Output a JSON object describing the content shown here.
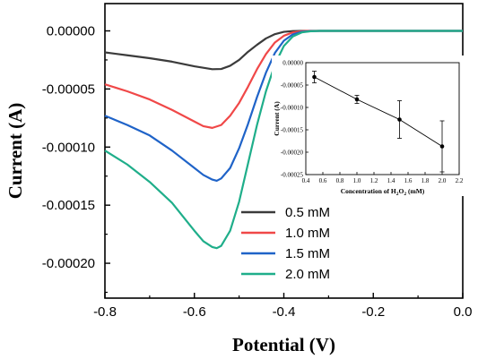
{
  "chart_data": [
    {
      "type": "line",
      "xlabel": "Potential (V)",
      "ylabel": "Current (A)",
      "xlim": [
        -0.8,
        0.0
      ],
      "ylim": [
        -0.00023,
        2.35e-05
      ],
      "xticks": [
        -0.8,
        -0.6,
        -0.4,
        -0.2,
        0.0
      ],
      "xtick_labels": [
        "-0.8",
        "-0.6",
        "-0.4",
        "-0.2",
        "0.0"
      ],
      "yticks": [
        0.0,
        -5e-05,
        -0.0001,
        -0.00015,
        -0.0002
      ],
      "ytick_labels": [
        "0.00000",
        "-0.00005",
        "-0.00010",
        "-0.00015",
        "-0.00020"
      ],
      "grid": false,
      "legend_position": "bottom-right",
      "series": [
        {
          "name": "0.5 mM",
          "color": "#3b3b3b",
          "x": [
            -0.8,
            -0.75,
            -0.7,
            -0.65,
            -0.6,
            -0.56,
            -0.54,
            -0.52,
            -0.5,
            -0.48,
            -0.46,
            -0.44,
            -0.42,
            -0.4,
            -0.38,
            -0.36,
            -0.34,
            -0.32,
            -0.3,
            -0.2,
            -0.1,
            0.0
          ],
          "y": [
            -1.85e-05,
            -2.1e-05,
            -2.35e-05,
            -2.65e-05,
            -3.05e-05,
            -3.3e-05,
            -3.28e-05,
            -3e-05,
            -2.5e-05,
            -1.8e-05,
            -1.2e-05,
            -6.5e-06,
            -2.8e-06,
            -8e-07,
            -2e-07,
            0.0,
            0.0,
            0.0,
            0.0,
            0.0,
            0.0,
            0.0
          ]
        },
        {
          "name": "1.0 mM",
          "color": "#f04848",
          "x": [
            -0.8,
            -0.75,
            -0.7,
            -0.65,
            -0.6,
            -0.58,
            -0.56,
            -0.54,
            -0.52,
            -0.5,
            -0.48,
            -0.46,
            -0.44,
            -0.42,
            -0.4,
            -0.38,
            -0.36,
            -0.34,
            -0.32,
            -0.3,
            -0.2,
            -0.1,
            0.0
          ],
          "y": [
            -4.6e-05,
            -5.2e-05,
            -5.9e-05,
            -6.8e-05,
            -7.8e-05,
            -8.2e-05,
            -8.35e-05,
            -8.1e-05,
            -7.3e-05,
            -6.2e-05,
            -4.8e-05,
            -3.3e-05,
            -2e-05,
            -1e-05,
            -4.2e-06,
            -1.3e-06,
            -3e-07,
            0.0,
            0.0,
            0.0,
            0.0,
            0.0,
            0.0
          ]
        },
        {
          "name": "1.5 mM",
          "color": "#1f63c8",
          "x": [
            -0.8,
            -0.75,
            -0.7,
            -0.65,
            -0.6,
            -0.58,
            -0.56,
            -0.55,
            -0.54,
            -0.52,
            -0.5,
            -0.48,
            -0.46,
            -0.44,
            -0.42,
            -0.4,
            -0.38,
            -0.36,
            -0.34,
            -0.32,
            -0.3,
            -0.2,
            -0.1,
            0.0
          ],
          "y": [
            -7.3e-05,
            -8.1e-05,
            -9e-05,
            -0.000103,
            -0.000118,
            -0.000124,
            -0.000128,
            -0.000129,
            -0.000127,
            -0.000118,
            -0.000101,
            -8e-05,
            -5.7e-05,
            -3.6e-05,
            -1.9e-05,
            -8.5e-06,
            -3e-06,
            -8e-07,
            -2e-07,
            0.0,
            0.0,
            0.0,
            0.0,
            0.0
          ]
        },
        {
          "name": "2.0 mM",
          "color": "#1fae8a",
          "x": [
            -0.8,
            -0.75,
            -0.7,
            -0.65,
            -0.6,
            -0.58,
            -0.56,
            -0.55,
            -0.54,
            -0.52,
            -0.5,
            -0.48,
            -0.46,
            -0.44,
            -0.42,
            -0.4,
            -0.38,
            -0.36,
            -0.34,
            -0.32,
            -0.3,
            -0.2,
            -0.1,
            0.0
          ],
          "y": [
            -0.000103,
            -0.000115,
            -0.00013,
            -0.000148,
            -0.000172,
            -0.000181,
            -0.000186,
            -0.000187,
            -0.000185,
            -0.000172,
            -0.000147,
            -0.000114,
            -8.1e-05,
            -5.2e-05,
            -2.9e-05,
            -1.3e-05,
            -4.8e-06,
            -1.3e-06,
            -3e-07,
            0.0,
            0.0,
            0.0,
            0.0,
            0.0
          ]
        }
      ]
    },
    {
      "type": "scatter",
      "xlabel_parts": [
        "Concentration of H",
        "2",
        "O",
        "2",
        " (mM)"
      ],
      "ylabel": "Current (A)",
      "xlim": [
        0.4,
        2.2
      ],
      "ylim": [
        -0.00025,
        0.0
      ],
      "xticks": [
        0.4,
        0.6,
        0.8,
        1.0,
        1.2,
        1.4,
        1.6,
        1.8,
        2.0,
        2.2
      ],
      "xtick_labels": [
        "0.4",
        "0.6",
        "0.8",
        "1.0",
        "1.2",
        "1.4",
        "1.6",
        "1.8",
        "2.0",
        "2.2"
      ],
      "yticks": [
        0.0,
        -5e-05,
        -0.0001,
        -0.00015,
        -0.0002,
        -0.00025
      ],
      "ytick_labels": [
        "0.00000",
        "-0.00005",
        "-0.00010",
        "-0.00015",
        "-0.00020",
        "-0.00025"
      ],
      "series": [
        {
          "x": [
            0.5,
            1.0,
            1.5,
            2.0
          ],
          "y": [
            -3.2e-05,
            -8.2e-05,
            -0.000127,
            -0.000187
          ],
          "error": [
            1.3e-05,
            9e-06,
            4.2e-05,
            5.7e-05
          ]
        }
      ]
    }
  ]
}
